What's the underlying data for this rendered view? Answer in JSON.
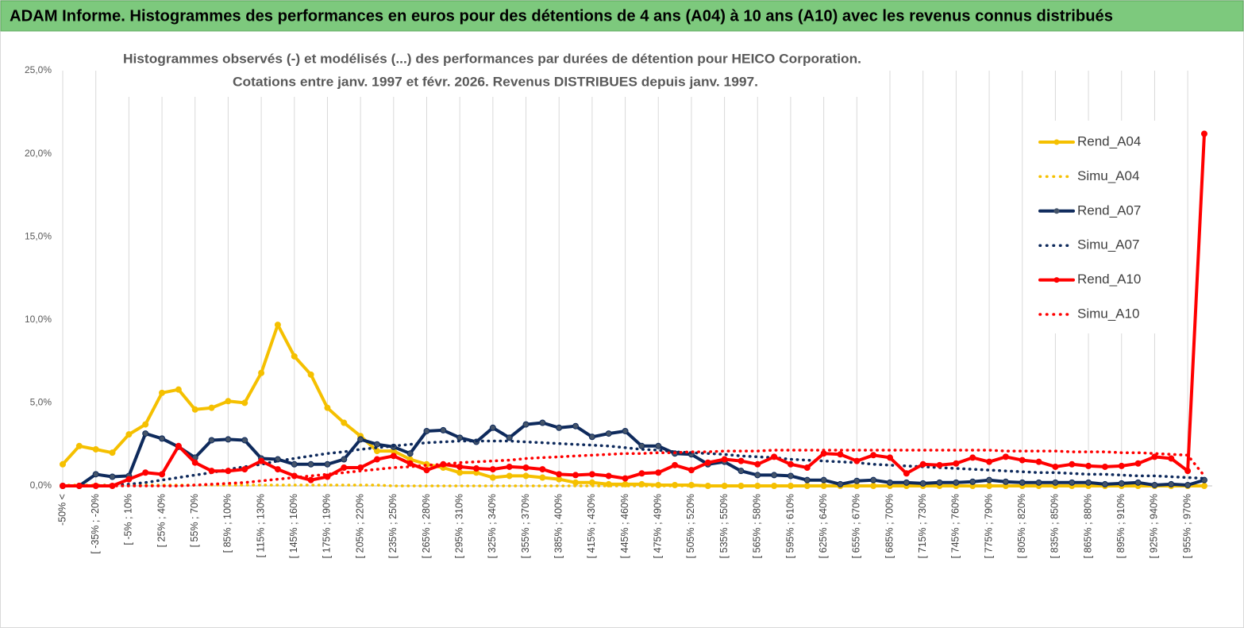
{
  "header": {
    "title": "ADAM Informe. Histogrammes des performances en euros pour des détentions de 4 ans (A04) à 10 ans (A10) avec les revenus connus distribués"
  },
  "chart_data": {
    "type": "line",
    "title": [
      "Histogrammes observés (-) et modélisés (...)  des performances par durées de détention pour HEICO Corporation.",
      "Cotations entre janv. 1997 et févr. 2026. Revenus DISTRIBUES depuis janv. 1997."
    ],
    "categories": [
      "-50% <",
      null,
      "[ -35% ; -20%",
      null,
      "[ -5% ; 10%",
      null,
      "[ 25% ; 40%",
      null,
      "[ 55% ; 70%",
      null,
      "[ 85% ; 100%",
      null,
      "[ 115% ; 130%",
      null,
      "[ 145% ; 160%",
      null,
      "[ 175% ; 190%",
      null,
      "[ 205% ; 220%",
      null,
      "[ 235% ; 250%",
      null,
      "[ 265% ; 280%",
      null,
      "[ 295% ; 310%",
      null,
      "[ 325% ; 340%",
      null,
      "[ 355% ; 370%",
      null,
      "[ 385% ; 400%",
      null,
      "[ 415% ; 430%",
      null,
      "[ 445% ; 460%",
      null,
      "[ 475% ; 490%",
      null,
      "[ 505% ; 520%",
      null,
      "[ 535% ; 550%",
      null,
      "[ 565% ; 580%",
      null,
      "[ 595% ; 610%",
      null,
      "[ 625% ; 640%",
      null,
      "[ 655% ; 670%",
      null,
      "[ 685% ; 700%",
      null,
      "[ 715% ; 730%",
      null,
      "[ 745% ; 760%",
      null,
      "[ 775% ; 790%",
      null,
      "[ 805% ; 820%",
      null,
      "[ 835% ; 850%",
      null,
      "[ 865% ; 880%",
      null,
      "[ 895% ; 910%",
      null,
      "[ 925% ; 940%",
      null,
      "[ 955% ; 970%",
      null
    ],
    "series": [
      {
        "name": "Rend_A04",
        "color": "#f5c000",
        "dash": false,
        "values": [
          1.3,
          2.4,
          2.2,
          2.0,
          3.1,
          3.7,
          5.6,
          5.8,
          4.6,
          4.7,
          5.1,
          5.0,
          6.8,
          9.7,
          7.8,
          6.7,
          4.7,
          3.8,
          3.0,
          2.1,
          2.1,
          1.6,
          1.3,
          1.1,
          0.8,
          0.8,
          0.5,
          0.6,
          0.6,
          0.5,
          0.4,
          0.2,
          0.2,
          0.1,
          0.1,
          0.1,
          0.05,
          0.05,
          0.05,
          0,
          0,
          0,
          0,
          0,
          0,
          0,
          0,
          0,
          0,
          0,
          0,
          0,
          0,
          0,
          0,
          0,
          0,
          0,
          0,
          0,
          0,
          0,
          0,
          0,
          0,
          0,
          0,
          0,
          0,
          0
        ]
      },
      {
        "name": "Simu_A04",
        "color": "#f5c000",
        "dash": true,
        "values": [
          0.05,
          0.05,
          0.05,
          0.05,
          0.05,
          0.05,
          0.05,
          0.05,
          0.05,
          0.05,
          0.05,
          0.05,
          0.05,
          0.05,
          0.05,
          0.05,
          0.05,
          0.05,
          0.05,
          0.05,
          0,
          0,
          0,
          0,
          0,
          0,
          0,
          0,
          0,
          0,
          0,
          0,
          0,
          0,
          0,
          0,
          0,
          0,
          0,
          0,
          0,
          0,
          0,
          0,
          0,
          0,
          0,
          0,
          0,
          0,
          0,
          0,
          0,
          0,
          0,
          0,
          0,
          0,
          0,
          0,
          0,
          0,
          0,
          0,
          0,
          0,
          0,
          0,
          0,
          0
        ]
      },
      {
        "name": "Rend_A07",
        "color": "#0e2a5c",
        "dash": false,
        "values": [
          0,
          0,
          0.7,
          0.55,
          0.6,
          3.15,
          2.85,
          2.35,
          1.7,
          2.75,
          2.8,
          2.75,
          1.65,
          1.6,
          1.3,
          1.3,
          1.3,
          1.6,
          2.8,
          2.5,
          2.35,
          1.95,
          3.3,
          3.35,
          2.9,
          2.65,
          3.5,
          2.9,
          3.7,
          3.8,
          3.5,
          3.6,
          2.95,
          3.15,
          3.3,
          2.4,
          2.4,
          1.95,
          1.9,
          1.3,
          1.45,
          0.9,
          0.65,
          0.65,
          0.6,
          0.35,
          0.35,
          0.1,
          0.3,
          0.35,
          0.2,
          0.2,
          0.15,
          0.2,
          0.2,
          0.25,
          0.35,
          0.25,
          0.2,
          0.2,
          0.2,
          0.2,
          0.2,
          0.1,
          0.15,
          0.2,
          0.05,
          0.1,
          0.05,
          0.35
        ]
      },
      {
        "name": "Simu_A07",
        "color": "#0e2a5c",
        "dash": true,
        "values": [
          0,
          0,
          0,
          0.05,
          0.1,
          0.2,
          0.35,
          0.5,
          0.65,
          0.8,
          1.0,
          1.15,
          1.3,
          1.5,
          1.65,
          1.8,
          1.95,
          2.05,
          2.2,
          2.3,
          2.4,
          2.5,
          2.6,
          2.65,
          2.7,
          2.7,
          2.7,
          2.7,
          2.65,
          2.6,
          2.55,
          2.5,
          2.45,
          2.4,
          2.3,
          2.2,
          2.15,
          2.05,
          2.0,
          1.95,
          1.9,
          1.8,
          1.75,
          1.7,
          1.6,
          1.55,
          1.5,
          1.45,
          1.4,
          1.3,
          1.25,
          1.2,
          1.15,
          1.1,
          1.05,
          1.0,
          0.95,
          0.9,
          0.85,
          0.8,
          0.8,
          0.75,
          0.7,
          0.7,
          0.65,
          0.6,
          0.6,
          0.55,
          0.5,
          0.45
        ]
      },
      {
        "name": "Rend_A10",
        "color": "#ff0000",
        "dash": false,
        "values": [
          0,
          0,
          0,
          0,
          0.4,
          0.8,
          0.7,
          2.4,
          1.4,
          0.9,
          0.9,
          1.0,
          1.5,
          1.0,
          0.6,
          0.35,
          0.55,
          1.1,
          1.1,
          1.6,
          1.8,
          1.35,
          0.95,
          1.3,
          1.15,
          1.05,
          1.0,
          1.15,
          1.1,
          1.0,
          0.7,
          0.65,
          0.7,
          0.6,
          0.45,
          0.75,
          0.8,
          1.25,
          0.95,
          1.4,
          1.6,
          1.5,
          1.3,
          1.75,
          1.3,
          1.1,
          1.95,
          1.9,
          1.5,
          1.85,
          1.7,
          0.75,
          1.3,
          1.25,
          1.35,
          1.7,
          1.45,
          1.75,
          1.55,
          1.45,
          1.15,
          1.3,
          1.2,
          1.15,
          1.2,
          1.35,
          1.75,
          1.65,
          0.9,
          21.2
        ]
      },
      {
        "name": "Simu_A10",
        "color": "#ff0000",
        "dash": true,
        "values": [
          0,
          0,
          0,
          0,
          0,
          0,
          0,
          0,
          0.05,
          0.1,
          0.15,
          0.2,
          0.3,
          0.4,
          0.5,
          0.6,
          0.7,
          0.8,
          0.9,
          1.0,
          1.1,
          1.15,
          1.25,
          1.3,
          1.4,
          1.45,
          1.5,
          1.55,
          1.65,
          1.7,
          1.75,
          1.8,
          1.85,
          1.9,
          1.95,
          1.95,
          2.0,
          2.0,
          2.05,
          2.05,
          2.1,
          2.1,
          2.1,
          2.15,
          2.15,
          2.15,
          2.15,
          2.15,
          2.15,
          2.15,
          2.15,
          2.15,
          2.15,
          2.15,
          2.15,
          2.15,
          2.15,
          2.1,
          2.1,
          2.1,
          2.1,
          2.05,
          2.05,
          2.05,
          2.0,
          2.0,
          1.95,
          1.9,
          1.85,
          0.6
        ]
      }
    ],
    "ylim": [
      0,
      25
    ],
    "yticks": [
      {
        "value": 0,
        "label": "0,0%"
      },
      {
        "value": 5,
        "label": "5,0%"
      },
      {
        "value": 10,
        "label": "10,0%"
      },
      {
        "value": 15,
        "label": "15,0%"
      },
      {
        "value": 20,
        "label": "20,0%"
      },
      {
        "value": 25,
        "label": "25,0%"
      }
    ],
    "grid": false,
    "xgrid": true,
    "legend": "right"
  }
}
